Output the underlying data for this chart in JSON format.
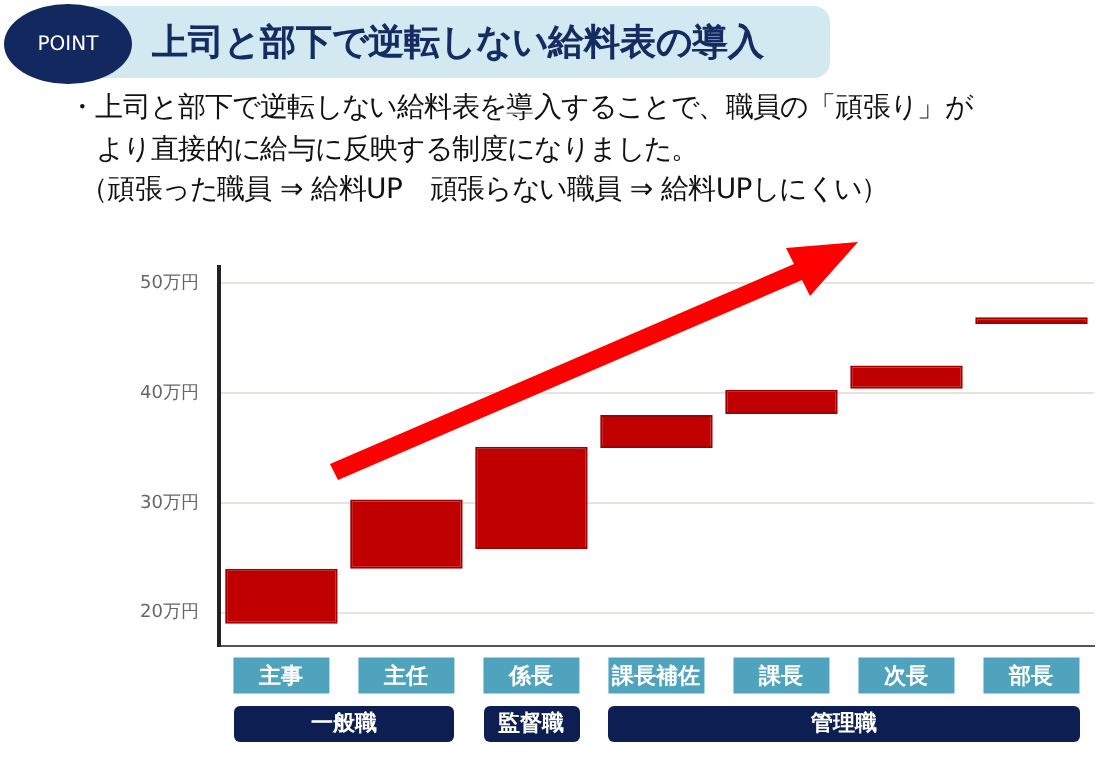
{
  "chart_data": {
    "type": "bar",
    "title": "上司と部下で逆転しない給料表の導入",
    "subtitle": "・上司と部下で逆転しない給料表を導入することで、職員の「頑張り」がより直接的に給与に反映する制度になりました。",
    "annotations": [
      "POINT",
      "一般職",
      "監督職",
      "管理職",
      "（頑張った職員 ⇒ 給料UP　頑張らない職員 ⇒ 給料UPしにくい）"
    ],
    "categories": [
      "主事",
      "主任",
      "係長",
      "課長補佐",
      "課長",
      "次長",
      "部長"
    ],
    "base": [
      19,
      24,
      25.8,
      35,
      38.1,
      40.4,
      46.3
    ],
    "values": [
      5,
      6.3,
      9.3,
      3,
      2.2,
      2.1,
      0.6
    ],
    "color": "#c00000",
    "ylim": [
      17,
      51.5
    ],
    "yticks": [
      {
        "value": 20,
        "label": "20万円"
      },
      {
        "value": 30,
        "label": "30万円"
      },
      {
        "value": 40,
        "label": "40万円"
      },
      {
        "value": 50,
        "label": "50万円"
      }
    ],
    "grid": "y"
  }
}
